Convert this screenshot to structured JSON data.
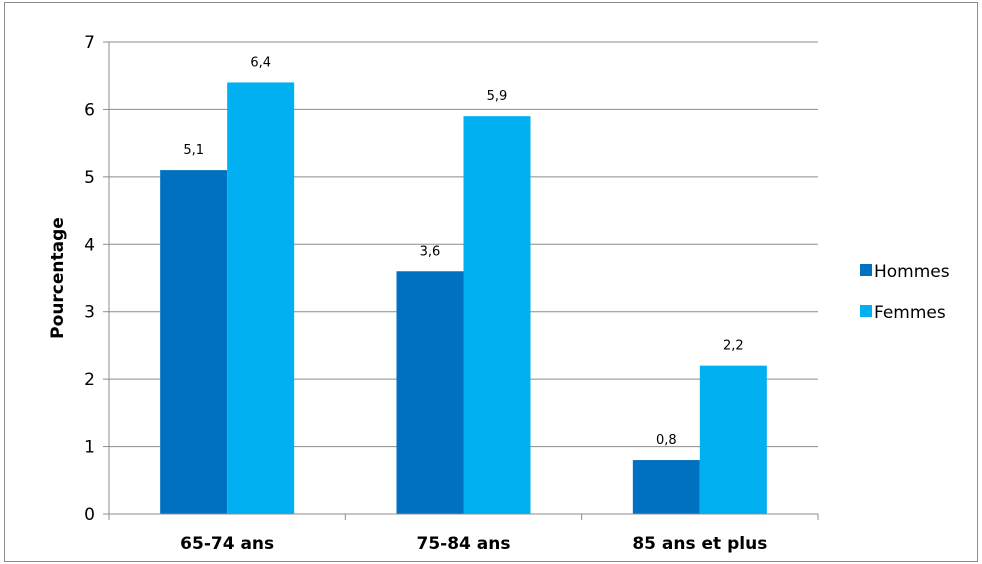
{
  "chart_data": {
    "type": "bar",
    "categories": [
      "65-74 ans",
      "75-84 ans",
      "85 ans et plus"
    ],
    "series": [
      {
        "name": "Hommes",
        "values": [
          5.1,
          3.6,
          0.8
        ],
        "labels": [
          "5,1",
          "3,6",
          "0,8"
        ],
        "color": "#0070c0"
      },
      {
        "name": "Femmes",
        "values": [
          6.4,
          5.9,
          2.2
        ],
        "labels": [
          "6,4",
          "5,9",
          "2,2"
        ],
        "color": "#00b0f0"
      }
    ],
    "ylabel": "Pourcentage",
    "xlabel": "",
    "ylim": [
      0,
      7
    ],
    "yticks": [
      "0",
      "1",
      "2",
      "3",
      "4",
      "5",
      "6",
      "7"
    ],
    "grid": true,
    "legend_position": "right"
  }
}
